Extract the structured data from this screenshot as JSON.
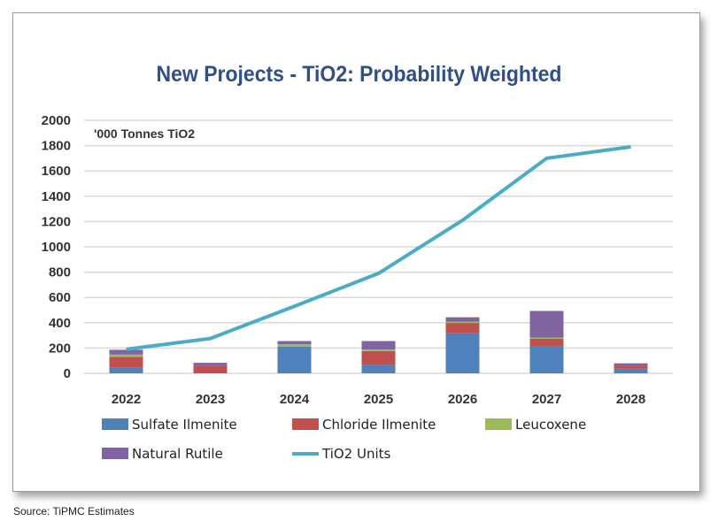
{
  "chart_data": {
    "type": "bar",
    "title": "New Projects - TiO2: Probability Weighted",
    "unit_label": "'000 Tonnes TiO2",
    "ylim": [
      0,
      2000
    ],
    "yticks": [
      "0",
      "200",
      "400",
      "600",
      "800",
      "1000",
      "1200",
      "1400",
      "1600",
      "1800",
      "2000"
    ],
    "categories": [
      "2022",
      "2023",
      "2024",
      "2025",
      "2026",
      "2027",
      "2028"
    ],
    "series": [
      {
        "name": "Sulfate Ilmenite",
        "kind": "bar",
        "color": "#4f81bd",
        "values": [
          43,
          0,
          210,
          67,
          317,
          217,
          36
        ]
      },
      {
        "name": "Chloride Ilmenite",
        "kind": "bar",
        "color": "#c0504d",
        "values": [
          86,
          62,
          0,
          109,
          81,
          57,
          24
        ]
      },
      {
        "name": "Leucoxene",
        "kind": "bar",
        "color": "#9bbb59",
        "values": [
          19,
          0,
          19,
          12,
          9,
          7,
          0
        ]
      },
      {
        "name": "Natural Rutile",
        "kind": "bar",
        "color": "#8064a2",
        "values": [
          38,
          21,
          26,
          67,
          36,
          212,
          19
        ]
      },
      {
        "name": "TiO2 Units",
        "kind": "line",
        "color": "#4bacc6",
        "values": [
          190,
          275,
          530,
          790,
          1210,
          1700,
          1790
        ]
      }
    ],
    "grid": true,
    "legend": "bottom"
  },
  "source": "Source: TiPMC Estimates"
}
